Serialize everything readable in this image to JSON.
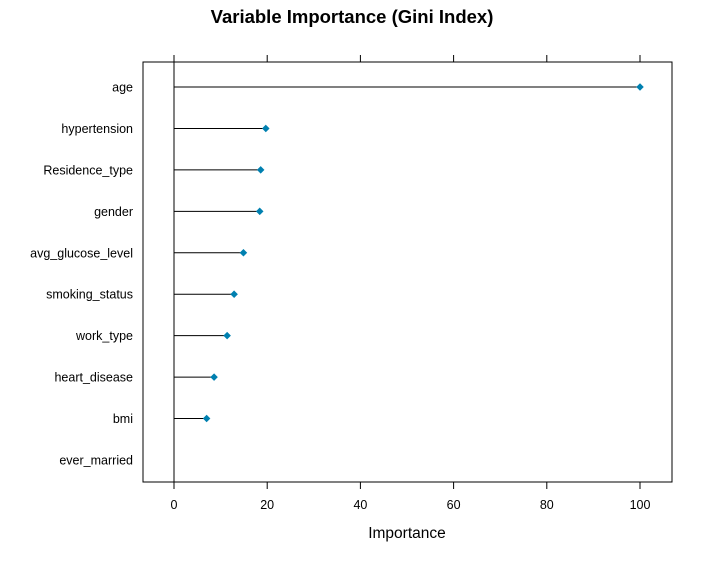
{
  "chart_data": {
    "type": "dot",
    "title": "Variable Importance (Gini Index)",
    "xlabel": "Importance",
    "ylabel": "",
    "xlim": [
      0,
      100
    ],
    "x_ticks": [
      0,
      20,
      40,
      60,
      80,
      100
    ],
    "categories": [
      "age",
      "hypertension",
      "Residence_type",
      "gender",
      "avg_glucose_level",
      "smoking_status",
      "work_type",
      "heart_disease",
      "bmi",
      "ever_married"
    ],
    "values": [
      100,
      19.7,
      18.6,
      18.4,
      14.9,
      12.9,
      11.4,
      8.6,
      7.0,
      0
    ],
    "grid": false,
    "legend": "none",
    "point_color": "#0080B0",
    "line_color": "#000000"
  }
}
